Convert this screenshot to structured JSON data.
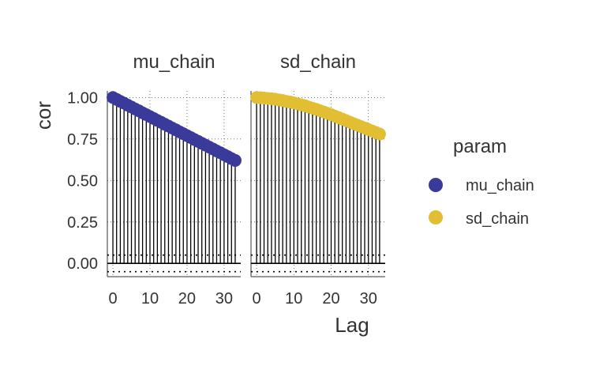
{
  "chart_data": {
    "type": "bar",
    "subtype": "autocorrelation-lollipop",
    "xlabel": "Lag",
    "ylabel": "cor",
    "xlim": [
      -1.5,
      34.5
    ],
    "ylim": [
      -0.08,
      1.04
    ],
    "x_ticks": [
      0,
      10,
      20,
      30
    ],
    "x_tick_labels": [
      "0",
      "10",
      "20",
      "30"
    ],
    "y_ticks": [
      0,
      0.25,
      0.5,
      0.75,
      1
    ],
    "y_tick_labels": [
      "0.00",
      "0.25",
      "0.50",
      "0.75",
      "1.00"
    ],
    "grid": true,
    "legend": {
      "title": "param",
      "position": "right",
      "entries": [
        {
          "label": "mu_chain",
          "color": "#3A3A9A"
        },
        {
          "label": "sd_chain",
          "color": "#E2BE32"
        }
      ]
    },
    "reference_lines": {
      "zero": 0,
      "ci": [
        0.05,
        -0.05
      ]
    },
    "panels": [
      {
        "strip": "mu_chain",
        "color": "#3A3A9A",
        "lags": [
          0,
          1,
          2,
          3,
          4,
          5,
          6,
          7,
          8,
          9,
          10,
          11,
          12,
          13,
          14,
          15,
          16,
          17,
          18,
          19,
          20,
          21,
          22,
          23,
          24,
          25,
          26,
          27,
          28,
          29,
          30,
          31,
          32,
          33
        ],
        "values": [
          1.0,
          0.989,
          0.977,
          0.966,
          0.954,
          0.943,
          0.931,
          0.92,
          0.908,
          0.897,
          0.885,
          0.874,
          0.862,
          0.851,
          0.839,
          0.828,
          0.816,
          0.805,
          0.793,
          0.782,
          0.77,
          0.759,
          0.747,
          0.736,
          0.724,
          0.713,
          0.701,
          0.69,
          0.678,
          0.667,
          0.655,
          0.644,
          0.632,
          0.621
        ]
      },
      {
        "strip": "sd_chain",
        "color": "#E2BE32",
        "lags": [
          0,
          1,
          2,
          3,
          4,
          5,
          6,
          7,
          8,
          9,
          10,
          11,
          12,
          13,
          14,
          15,
          16,
          17,
          18,
          19,
          20,
          21,
          22,
          23,
          24,
          25,
          26,
          27,
          28,
          29,
          30,
          31,
          32,
          33
        ],
        "values": [
          1.0,
          0.999,
          0.997,
          0.995,
          0.993,
          0.99,
          0.986,
          0.982,
          0.977,
          0.973,
          0.968,
          0.962,
          0.956,
          0.95,
          0.943,
          0.936,
          0.929,
          0.921,
          0.913,
          0.905,
          0.897,
          0.888,
          0.879,
          0.87,
          0.861,
          0.852,
          0.843,
          0.834,
          0.825,
          0.816,
          0.807,
          0.798,
          0.789,
          0.78
        ]
      }
    ]
  }
}
